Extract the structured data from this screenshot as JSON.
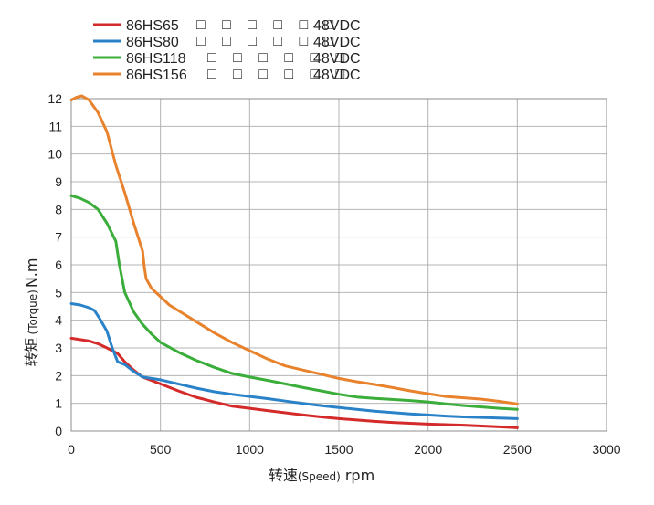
{
  "chart_data": {
    "type": "line",
    "xlabel_main": "转速",
    "xlabel_paren": "(Speed)",
    "xlabel_unit": "rpm",
    "ylabel_main": "转矩",
    "ylabel_paren": "(Torque)",
    "ylabel_unit": "N.m",
    "xlim": [
      0,
      3000
    ],
    "ylim": [
      0,
      12
    ],
    "xticks": [
      0,
      500,
      1000,
      1500,
      2000,
      2500,
      3000
    ],
    "yticks": [
      0,
      1,
      2,
      3,
      4,
      5,
      6,
      7,
      8,
      9,
      10,
      11,
      12
    ],
    "grid": true,
    "legend_position": "top-left, above plot",
    "series": [
      {
        "name": "86HS65",
        "glyphs": "□ □ □ □ □ □",
        "voltage": "48VDC",
        "color": "#d42a2a",
        "x": [
          0,
          100,
          150,
          200,
          260,
          300,
          350,
          400,
          500,
          600,
          700,
          800,
          900,
          1000,
          1100,
          1200,
          1300,
          1400,
          1500,
          1600,
          1700,
          1800,
          1900,
          2000,
          2100,
          2200,
          2300,
          2400,
          2500
        ],
        "y": [
          3.35,
          3.25,
          3.15,
          3.0,
          2.8,
          2.5,
          2.2,
          1.95,
          1.7,
          1.45,
          1.22,
          1.05,
          0.9,
          0.82,
          0.74,
          0.66,
          0.58,
          0.51,
          0.45,
          0.4,
          0.35,
          0.31,
          0.28,
          0.25,
          0.23,
          0.21,
          0.18,
          0.15,
          0.12
        ]
      },
      {
        "name": "86HS80",
        "glyphs": "□ □ □ □ □ □",
        "voltage": "48VDC",
        "color": "#2a82c8",
        "x": [
          0,
          50,
          100,
          130,
          160,
          200,
          230,
          260,
          300,
          350,
          400,
          500,
          600,
          700,
          800,
          900,
          1000,
          1100,
          1200,
          1300,
          1400,
          1500,
          1600,
          1700,
          1800,
          1900,
          2000,
          2100,
          2200,
          2300,
          2400,
          2500
        ],
        "y": [
          4.6,
          4.55,
          4.45,
          4.35,
          4.05,
          3.6,
          3.0,
          2.5,
          2.4,
          2.15,
          1.95,
          1.85,
          1.7,
          1.55,
          1.42,
          1.33,
          1.25,
          1.17,
          1.08,
          1.0,
          0.92,
          0.85,
          0.78,
          0.72,
          0.67,
          0.62,
          0.58,
          0.54,
          0.51,
          0.49,
          0.47,
          0.45
        ]
      },
      {
        "name": "86HS118",
        "glyphs": "□ □ □ □ □ □",
        "voltage": "48VDC",
        "color": "#3aad3a",
        "x": [
          0,
          50,
          100,
          150,
          200,
          250,
          270,
          300,
          350,
          400,
          450,
          500,
          600,
          700,
          800,
          900,
          1000,
          1100,
          1200,
          1300,
          1400,
          1500,
          1600,
          1700,
          1800,
          1900,
          2000,
          2100,
          2200,
          2300,
          2400,
          2500
        ],
        "y": [
          8.5,
          8.4,
          8.25,
          8.0,
          7.5,
          6.85,
          6.0,
          5.0,
          4.3,
          3.85,
          3.5,
          3.2,
          2.85,
          2.55,
          2.3,
          2.08,
          1.95,
          1.83,
          1.7,
          1.57,
          1.45,
          1.33,
          1.23,
          1.18,
          1.14,
          1.1,
          1.05,
          0.98,
          0.92,
          0.87,
          0.82,
          0.78
        ]
      },
      {
        "name": "86HS156",
        "glyphs": "□ □ □ □ □ □",
        "voltage": "48VDC",
        "color": "#e8822c",
        "x": [
          0,
          30,
          60,
          100,
          150,
          200,
          250,
          300,
          350,
          400,
          410,
          420,
          450,
          500,
          550,
          600,
          700,
          800,
          900,
          1000,
          1100,
          1200,
          1300,
          1400,
          1500,
          1600,
          1700,
          1800,
          1900,
          2000,
          2100,
          2200,
          2300,
          2400,
          2500
        ],
        "y": [
          11.95,
          12.05,
          12.1,
          11.95,
          11.5,
          10.8,
          9.6,
          8.6,
          7.5,
          6.5,
          5.9,
          5.5,
          5.15,
          4.85,
          4.55,
          4.35,
          3.95,
          3.55,
          3.2,
          2.9,
          2.6,
          2.35,
          2.2,
          2.05,
          1.9,
          1.78,
          1.68,
          1.57,
          1.45,
          1.35,
          1.25,
          1.2,
          1.15,
          1.07,
          0.98
        ]
      }
    ]
  }
}
